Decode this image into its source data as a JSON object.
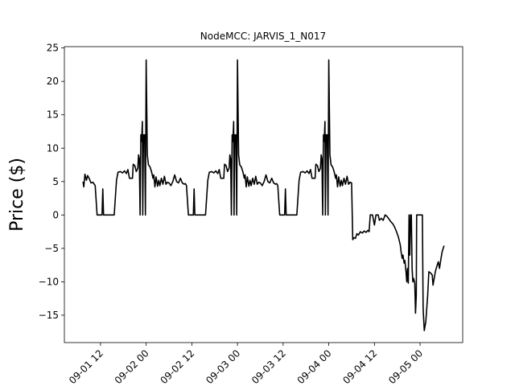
{
  "chart_data": {
    "type": "line",
    "title": "NodeMCC: JARVIS_1_N017",
    "y_label": "Price ($)",
    "color": "#000000",
    "xlim": [
      2.5,
      107.2
    ],
    "ylim": [
      -19.1,
      25.2
    ],
    "xticks": [
      {
        "value": 12,
        "label": "09-01 12"
      },
      {
        "value": 24,
        "label": "09-02 00"
      },
      {
        "value": 36,
        "label": "09-02 12"
      },
      {
        "value": 48,
        "label": "09-03 00"
      },
      {
        "value": 60,
        "label": "09-03 12"
      },
      {
        "value": 72,
        "label": "09-04 00"
      },
      {
        "value": 84,
        "label": "09-04 12"
      },
      {
        "value": 96,
        "label": "09-05 00"
      }
    ],
    "yticks": [
      {
        "value": -15,
        "label": "−15"
      },
      {
        "value": -10,
        "label": "−10"
      },
      {
        "value": -5,
        "label": "−5"
      },
      0,
      5,
      10,
      15,
      20,
      25
    ],
    "x": [
      7.4,
      7.6,
      7.9,
      8.3,
      8.6,
      9.0,
      9.5,
      10.0,
      10.6,
      11.1,
      12.4,
      12.6,
      12.8,
      15.6,
      16.2,
      16.6,
      17.2,
      17.8,
      18.3,
      18.8,
      19.2,
      19.6,
      20.4,
      20.6,
      21.0,
      21.4,
      21.8,
      22.0,
      22.2,
      22.4,
      22.6,
      22.8,
      23.0,
      23.1,
      23.3,
      23.6,
      23.8,
      24.0,
      24.3,
      24.6,
      25.0,
      25.4,
      25.8,
      26.0,
      26.3,
      26.6,
      27.0,
      27.3,
      27.6,
      28.0,
      28.4,
      28.8,
      29.2,
      29.6,
      30.0,
      30.5,
      31.0,
      31.5,
      32.0,
      32.5,
      33.0,
      33.5,
      34.0,
      34.3,
      34.6,
      35.1,
      36.4,
      36.6,
      36.8,
      39.6,
      40.2,
      40.6,
      41.2,
      41.8,
      42.3,
      42.8,
      43.2,
      43.6,
      44.4,
      44.6,
      45.0,
      45.4,
      45.8,
      46.0,
      46.2,
      46.4,
      46.6,
      46.8,
      47.0,
      47.1,
      47.3,
      47.6,
      47.8,
      48.0,
      48.3,
      48.6,
      49.0,
      49.4,
      49.8,
      50.0,
      50.3,
      50.6,
      51.0,
      51.3,
      51.6,
      52.0,
      52.4,
      52.8,
      53.2,
      53.6,
      54.0,
      54.5,
      55.0,
      55.5,
      56.0,
      56.5,
      57.0,
      57.5,
      58.0,
      58.3,
      58.6,
      59.1,
      60.4,
      60.6,
      60.8,
      63.6,
      64.2,
      64.6,
      65.2,
      65.8,
      66.3,
      66.8,
      67.2,
      67.6,
      68.4,
      68.6,
      69.0,
      69.4,
      69.8,
      70.0,
      70.2,
      70.4,
      70.6,
      70.8,
      71.0,
      71.1,
      71.3,
      71.6,
      71.8,
      72.0,
      72.3,
      72.6,
      73.0,
      73.4,
      73.8,
      74.0,
      74.3,
      74.6,
      75.0,
      75.3,
      75.6,
      76.0,
      76.4,
      76.8,
      77.2,
      77.6,
      78.0,
      78.3,
      78.6,
      79.0,
      79.4,
      79.8,
      80.3,
      80.8,
      81.3,
      81.8,
      82.3,
      82.6,
      82.9,
      83.5,
      84.0,
      84.4,
      85.0,
      85.3,
      85.8,
      86.3,
      86.8,
      87.3,
      87.8,
      88.3,
      88.8,
      89.3,
      89.8,
      90.3,
      90.8,
      91.0,
      91.3,
      91.5,
      91.8,
      92.0,
      92.3,
      92.5,
      92.7,
      92.9,
      93.1,
      93.3,
      93.5,
      93.7,
      93.9,
      94.1,
      94.3,
      94.6,
      94.8,
      95.0,
      95.1,
      96.6,
      96.8,
      97.1,
      97.5,
      98.0,
      98.3,
      98.8,
      99.2,
      99.4,
      99.7,
      100.0,
      100.5,
      100.8,
      101.1,
      101.5,
      101.8,
      102.3
    ],
    "values": [
      5,
      4.2,
      6.1,
      5.2,
      5.9,
      5.5,
      4.8,
      4.9,
      4.4,
      0,
      0,
      3.9,
      0,
      0,
      5.2,
      6.4,
      6.5,
      6.3,
      6.6,
      6.2,
      6.8,
      5.5,
      5.5,
      7.6,
      7.4,
      6.5,
      7.0,
      9.0,
      8.4,
      0,
      12,
      11,
      14,
      0,
      12,
      12,
      0,
      23.2,
      9,
      7.5,
      7.2,
      6.5,
      5.5,
      6,
      4.2,
      5.7,
      4.3,
      5.2,
      4.4,
      5.5,
      4.6,
      5.8,
      4.6,
      4.9,
      4.8,
      4.4,
      5.0,
      6.0,
      5.0,
      4.8,
      5.5,
      4.8,
      4.6,
      4.7,
      4.4,
      0,
      0,
      3.9,
      0,
      0,
      5.2,
      6.4,
      6.5,
      6.3,
      6.6,
      6.2,
      6.8,
      5.5,
      5.5,
      7.6,
      7.4,
      6.5,
      7.0,
      9.0,
      8.4,
      0,
      12,
      11,
      14,
      0,
      12,
      12,
      0,
      23.2,
      9,
      7.5,
      7.2,
      6.5,
      5.5,
      6,
      4.2,
      5.7,
      4.3,
      5.2,
      4.4,
      5.5,
      4.6,
      5.8,
      4.6,
      4.9,
      4.8,
      4.4,
      5.0,
      6.0,
      5.0,
      4.8,
      5.5,
      4.8,
      4.6,
      4.7,
      4.4,
      0,
      0,
      3.9,
      0,
      0,
      5.2,
      6.4,
      6.5,
      6.3,
      6.6,
      6.2,
      6.8,
      5.5,
      5.5,
      7.6,
      7.4,
      6.5,
      7.0,
      9.0,
      8.4,
      0,
      12,
      11,
      14,
      0,
      12,
      12,
      0,
      23.2,
      9,
      7.5,
      7.2,
      6.5,
      5.5,
      6,
      4.2,
      5.7,
      4.3,
      5.2,
      4.4,
      5.5,
      4.6,
      5.8,
      4.6,
      4.9,
      4.8,
      -3.7,
      -3.4,
      -3.5,
      -2.8,
      -3.0,
      -2.5,
      -2.7,
      -2.4,
      -2.6,
      -2.3,
      -2.5,
      0,
      0,
      -1.5,
      0,
      0,
      -0.8,
      -0.5,
      -0.8,
      0,
      -0.2,
      -0.6,
      -1.0,
      -1.3,
      -1.8,
      -2.5,
      -3.3,
      -4.5,
      -5.5,
      -6.5,
      -6.0,
      -7.2,
      -6.8,
      -8.5,
      -10.0,
      -8.0,
      -10.2,
      0,
      -6,
      0,
      0,
      -8,
      -10,
      -9.5,
      -10.2,
      -14.7,
      -12,
      0,
      0,
      -14,
      -17.3,
      -16,
      -12,
      -8.5,
      -8.7,
      -9.0,
      -10.5,
      -9.5,
      -8.5,
      -7.5,
      -7.0,
      -8.0,
      -6.5,
      -5.5,
      -4.6
    ]
  }
}
